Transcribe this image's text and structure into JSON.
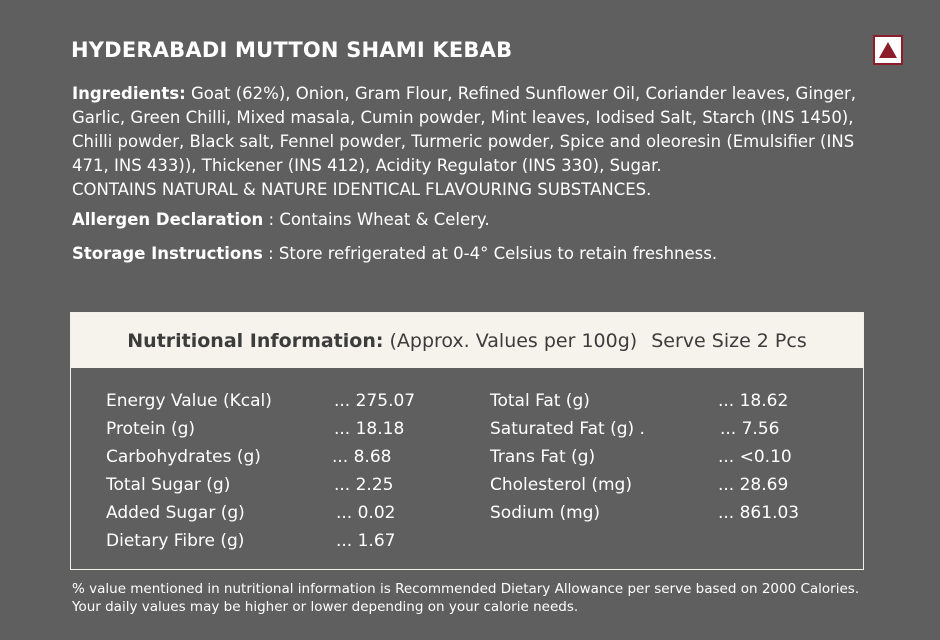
{
  "title": "HYDERABADI MUTTON SHAMI KEBAB",
  "veg_mark_icon": "non-veg-triangle-icon",
  "colors": {
    "background": "#5f5f5f",
    "mark": "#8b1e2a",
    "panel_head": "#f6f3ec"
  },
  "ingredients": {
    "label": "Ingredients:",
    "text": "Goat (62%), Onion, Gram Flour, Refined Sunflower Oil, Coriander leaves, Ginger, Garlic, Green Chilli, Mixed masala, Cumin powder, Mint leaves, Iodised Salt, Starch (INS 1450), Chilli powder, Black salt, Fennel powder, Turmeric powder, Spice and oleoresin (Emulsifier (INS 471, INS 433)), Thickener (INS 412), Acidity Regulator (INS 330), Sugar.",
    "flavouring": "CONTAINS NATURAL & NATURE IDENTICAL FLAVOURING SUBSTANCES."
  },
  "allergen": {
    "label": "Allergen Declaration",
    "text": ": Contains Wheat & Celery."
  },
  "storage": {
    "label": "Storage Instructions",
    "text": ": Store refrigerated at 0-4° Celsius to retain freshness."
  },
  "nutrition": {
    "heading": "Nutritional Information:",
    "approx": "(Approx. Values per 100g)",
    "serve": "Serve Size 2 Pcs",
    "left": [
      {
        "name": "Energy Value (Kcal)",
        "value": "... 275.07"
      },
      {
        "name": "Protein (g)",
        "value": "... 18.18"
      },
      {
        "name": "Carbohydrates (g)",
        "value": "... 8.68"
      },
      {
        "name": "Total Sugar (g)",
        "value": "... 2.25"
      },
      {
        "name": "Added Sugar (g)",
        "value": "... 0.02"
      },
      {
        "name": "Dietary Fibre (g)",
        "value": "... 1.67"
      }
    ],
    "right": [
      {
        "name": "Total Fat (g)",
        "value": "... 18.62"
      },
      {
        "name": "Saturated Fat (g)  .",
        "value": "... 7.56"
      },
      {
        "name": "Trans Fat (g)",
        "value": "... <0.10"
      },
      {
        "name": "Cholesterol (mg)",
        "value": "... 28.69"
      },
      {
        "name": "Sodium (mg)",
        "value": "... 861.03"
      }
    ]
  },
  "footnote": {
    "line1": "% value mentioned in nutritional information is Recommended Dietary Allowance per serve based on 2000 Calories.",
    "line2": "Your daily values may be higher or lower depending on your calorie needs."
  }
}
